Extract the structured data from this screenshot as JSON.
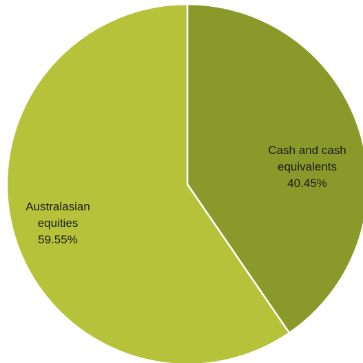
{
  "chart_data": {
    "type": "pie",
    "title": "",
    "legend": "none",
    "start_angle_deg": 0,
    "direction": "clockwise",
    "slices": [
      {
        "label_lines": [
          "Cash and cash",
          "equivalents"
        ],
        "value": 40.45,
        "value_label": "40.45%",
        "color": "#8a9a2a"
      },
      {
        "label_lines": [
          "Australasian",
          "equities"
        ],
        "value": 59.55,
        "value_label": "59.55%",
        "color": "#b5c23a"
      }
    ]
  }
}
